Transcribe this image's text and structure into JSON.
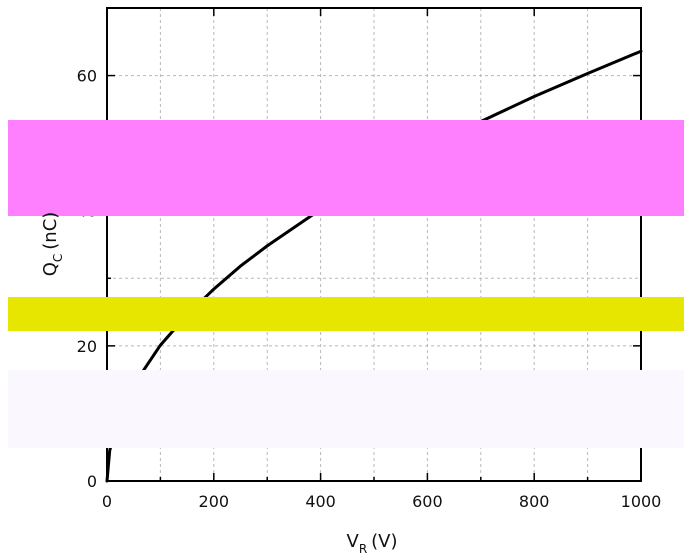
{
  "chart_data": {
    "type": "line",
    "title": "",
    "xlabel": {
      "main": "V",
      "sub": "R",
      "unit": "(V)"
    },
    "ylabel": {
      "main": "Q",
      "sub": "C",
      "unit": "(nC)"
    },
    "xlim": [
      0,
      1000
    ],
    "ylim": [
      0,
      70
    ],
    "x_ticks": [
      "0",
      "200",
      "400",
      "600",
      "800",
      "1000"
    ],
    "y_ticks": [
      "0",
      "20",
      "40",
      "60"
    ],
    "grid": true,
    "series": [
      {
        "x": [
          0,
          5,
          20,
          50,
          100,
          150,
          200,
          250,
          300,
          400,
          500,
          600,
          700,
          800,
          900,
          1000
        ],
        "values": [
          0,
          4.5,
          9.0,
          14.2,
          20.1,
          24.6,
          28.4,
          31.8,
          34.8,
          40.2,
          45.0,
          49.3,
          53.2,
          56.9,
          60.3,
          63.6
        ]
      }
    ],
    "overlays": [
      {
        "color": "#ff80ff"
      },
      {
        "color": "#e6e600"
      },
      {
        "color": "#fbf7ff"
      }
    ]
  }
}
